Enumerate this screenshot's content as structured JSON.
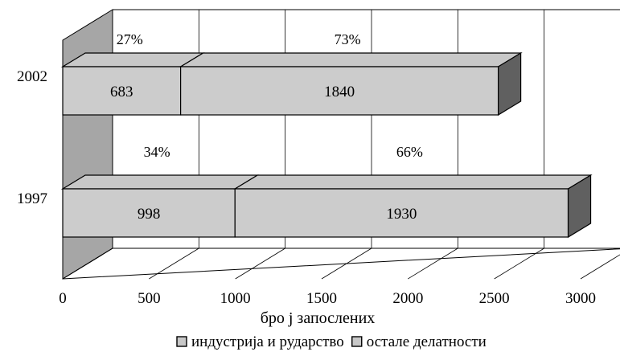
{
  "chart_data": {
    "type": "bar",
    "orientation": "horizontal",
    "stacked": true,
    "three_d": true,
    "categories": [
      "1997",
      "2002"
    ],
    "series": [
      {
        "name": "индустрија и рударство",
        "values": [
          998,
          683
        ],
        "percent_labels": [
          "34%",
          "27%"
        ],
        "color": "#c8c8c8"
      },
      {
        "name": "остале делатности",
        "values": [
          1930,
          1840
        ],
        "percent_labels": [
          "66%",
          "73%"
        ],
        "color": "#c8c8c8"
      }
    ],
    "xlabel": "бро ј запослених",
    "ylabel": "",
    "title": "",
    "xlim": [
      0,
      3000
    ],
    "x_ticks": [
      "0",
      "500",
      "1000",
      "1500",
      "2000",
      "2500",
      "3000"
    ],
    "grid": true,
    "legend_position": "bottom"
  }
}
